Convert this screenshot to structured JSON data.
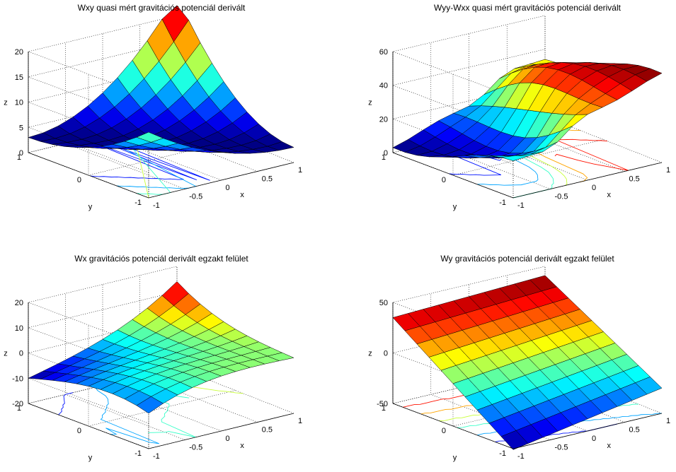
{
  "figure": {
    "background": "#ffffff",
    "grid_color": "#000000",
    "edge_color": "#000000",
    "colormap": "jet"
  },
  "chart_data": [
    {
      "type": "surface",
      "title": "Wxy quasi mért gravitációs potenciál derivált",
      "xlabel": "x",
      "ylabel": "y",
      "zlabel": "z",
      "xlim": [
        -1,
        1
      ],
      "ylim": [
        -1,
        1
      ],
      "zlim": [
        0,
        20
      ],
      "xticks": [
        "-1",
        "-0.5",
        "0",
        "0.5",
        "1"
      ],
      "yticks": [
        "-1",
        "0",
        "1"
      ],
      "zticks": [
        "0",
        "5",
        "10",
        "15",
        "20"
      ],
      "surface": "wxy",
      "contours": "ellipses"
    },
    {
      "type": "surface",
      "title": "Wyy-Wxx quasi mért gravitációs potenciál derivált",
      "xlabel": "x",
      "ylabel": "y",
      "zlabel": "z",
      "xlim": [
        -1,
        1
      ],
      "ylim": [
        -1,
        1
      ],
      "zlim": [
        0,
        60
      ],
      "xticks": [
        "-1",
        "-0.5",
        "0",
        "0.5",
        "1"
      ],
      "yticks": [
        "-1",
        "0",
        "1"
      ],
      "zticks": [
        "0",
        "20",
        "40",
        "60"
      ],
      "surface": "wyywxx",
      "contours": "levels"
    },
    {
      "type": "surface",
      "title": "Wx gravitációs potenciál derivált egzakt felület",
      "xlabel": "x",
      "ylabel": "y",
      "zlabel": "z",
      "xlim": [
        -1,
        1
      ],
      "ylim": [
        -1,
        1
      ],
      "zlim": [
        -20,
        20
      ],
      "xticks": [
        "-1",
        "-0.5",
        "0",
        "0.5",
        "1"
      ],
      "yticks": [
        "-1",
        "0",
        "1"
      ],
      "zticks": [
        "-20",
        "-10",
        "0",
        "10",
        "20"
      ],
      "surface": "wx",
      "contours": "levels"
    },
    {
      "type": "surface",
      "title": "Wy gravitációs potenciál derivált egzakt felület",
      "xlabel": "x",
      "ylabel": "y",
      "zlabel": "z",
      "xlim": [
        -1,
        1
      ],
      "ylim": [
        -1,
        1
      ],
      "zlim": [
        -50,
        50
      ],
      "xticks": [
        "-1",
        "-0.5",
        "0",
        "0.5",
        "1"
      ],
      "yticks": [
        "-1",
        "0",
        "1"
      ],
      "zticks": [
        "-50",
        "0",
        "50"
      ],
      "surface": "wy",
      "contours": "levels"
    }
  ]
}
